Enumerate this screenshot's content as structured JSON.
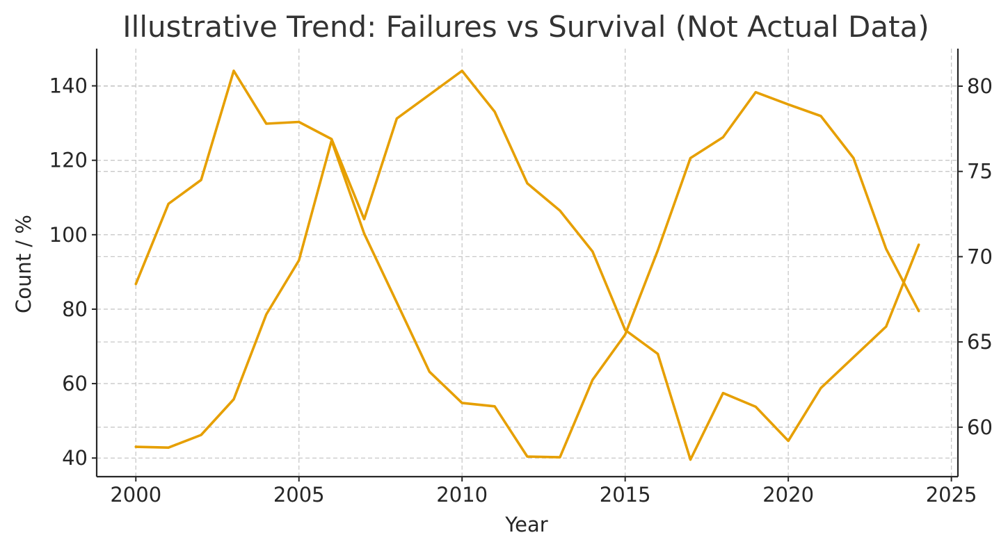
{
  "chart_data": {
    "type": "line",
    "title": "Illustrative Trend: Failures vs Survival (Not Actual Data)",
    "xlabel": "Year",
    "ylabel": "Count / %",
    "y2label": "",
    "x": [
      2000,
      2001,
      2002,
      2003,
      2004,
      2005,
      2006,
      2007,
      2008,
      2009,
      2010,
      2011,
      2012,
      2013,
      2014,
      2015,
      2016,
      2017,
      2018,
      2019,
      2020,
      2021,
      2022,
      2023,
      2024
    ],
    "xlim": [
      1998.8,
      2025.2
    ],
    "xticks": [
      2000,
      2005,
      2010,
      2015,
      2020,
      2025
    ],
    "ylim": [
      35,
      150
    ],
    "yticks": [
      40,
      60,
      80,
      100,
      120,
      140
    ],
    "y2lim": [
      57.1,
      82.2
    ],
    "y2ticks": [
      60,
      65,
      70,
      75,
      80
    ],
    "grid": true,
    "series": [
      {
        "axis": "left",
        "color": "#e69f00",
        "values": [
          43.0,
          42.8,
          46.2,
          55.8,
          78.6,
          93.1,
          125.3,
          100.3,
          81.8,
          63.2,
          54.8,
          53.9,
          40.4,
          40.2,
          61.0,
          73.2,
          95.8,
          120.6,
          126.2,
          138.3,
          135.0,
          131.9,
          120.6,
          96.2,
          79.5
        ]
      },
      {
        "axis": "right",
        "color": "#e69f00",
        "values": [
          68.4,
          73.1,
          74.5,
          80.9,
          77.8,
          77.9,
          76.9,
          72.2,
          78.1,
          79.5,
          80.9,
          78.5,
          74.3,
          72.7,
          70.3,
          65.7,
          64.3,
          58.1,
          62.0,
          61.2,
          59.2,
          62.3,
          64.1,
          65.9,
          70.7
        ]
      }
    ]
  }
}
